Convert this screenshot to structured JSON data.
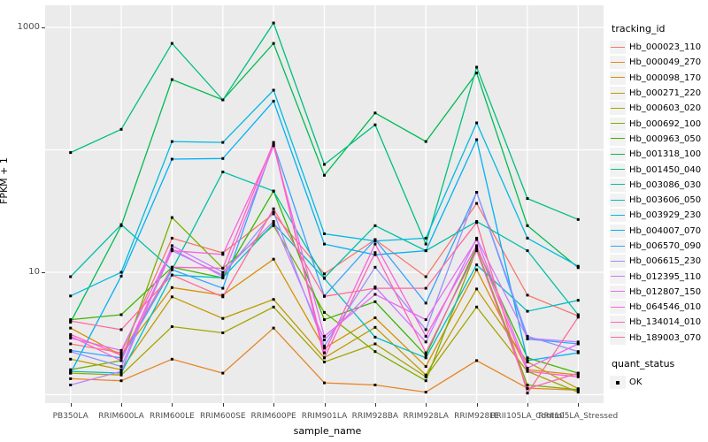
{
  "figure": {
    "panel_bg": "#ebebeb",
    "grid_color": "#ffffff",
    "point_color": "#000000",
    "tick_color": "#333333",
    "tick_label_color": "#4d4d4d"
  },
  "y_axis": {
    "title": "FPKM + 1",
    "ticks": [
      {
        "label": "1000",
        "value": 1000
      },
      {
        "label": "10",
        "value": 10
      }
    ],
    "gridline_values": [
      1,
      10,
      100,
      1000
    ]
  },
  "x_axis": {
    "title": "sample_name"
  },
  "legend": {
    "tracking_title": "tracking_id",
    "quant_title": "quant_status",
    "quant_ok_label": "OK"
  },
  "chart_data": {
    "type": "line",
    "title": "",
    "xlabel": "sample_name",
    "ylabel": "FPKM + 1",
    "y_scale": "log10",
    "ylim": [
      1,
      1200
    ],
    "legend_position": "right",
    "grid": true,
    "marker": "black-square",
    "categories": [
      "PB350LA",
      "RRIM600LA",
      "RRIM600LE",
      "RRIM600SE",
      "RRIM600PE",
      "RRIM901LA",
      "RRIM928BA",
      "RRIM928LA",
      "RRIM928LE",
      "RRII105LA_Control",
      "RRII105LA_Stressed"
    ],
    "series": [
      {
        "name": "Hb_000023_110",
        "color": "#F8766D",
        "values": [
          2.6,
          2.2,
          19,
          14.4,
          30,
          9.7,
          18.5,
          9.2,
          36.5,
          6.5,
          4.4
        ]
      },
      {
        "name": "Hb_000049_270",
        "color": "#E88526",
        "values": [
          1.35,
          1.3,
          1.95,
          1.5,
          3.5,
          1.25,
          1.2,
          1.05,
          1.9,
          1.13,
          1.09
        ]
      },
      {
        "name": "Hb_000098_170",
        "color": "#D89000",
        "values": [
          3.5,
          2.1,
          7.5,
          6.5,
          12.8,
          2.4,
          4.25,
          1.7,
          10.5,
          1.6,
          1.45
        ]
      },
      {
        "name": "Hb_000271_220",
        "color": "#C09B00",
        "values": [
          1.95,
          1.6,
          6.3,
          4.2,
          6.0,
          2.0,
          3.55,
          1.45,
          7.3,
          1.85,
          1.12
        ]
      },
      {
        "name": "Hb_000603_020",
        "color": "#A3A500",
        "values": [
          1.5,
          1.45,
          3.6,
          3.2,
          5.2,
          1.85,
          2.6,
          1.4,
          5.2,
          1.55,
          1.05
        ]
      },
      {
        "name": "Hb_000692_100",
        "color": "#7CAE00",
        "values": [
          1.6,
          1.9,
          28,
          10.8,
          24,
          4.7,
          2.25,
          1.3,
          15.5,
          1.2,
          1.1
        ]
      },
      {
        "name": "Hb_000963_050",
        "color": "#39B600",
        "values": [
          4.1,
          4.5,
          11,
          9.0,
          46,
          4.1,
          5.75,
          2.1,
          16,
          2.0,
          1.5
        ]
      },
      {
        "name": "Hb_001318_100",
        "color": "#00BB4E",
        "values": [
          3.9,
          24,
          375,
          256,
          740,
          62,
          200,
          117,
          425,
          24,
          10.9
        ]
      },
      {
        "name": "Hb_001450_040",
        "color": "#00BF7D",
        "values": [
          95,
          147,
          740,
          256,
          1086,
          76,
          160,
          17,
          473,
          40,
          27
        ]
      },
      {
        "name": "Hb_003086_030",
        "color": "#00C1A3",
        "values": [
          9.2,
          24.5,
          10.5,
          66,
          46,
          9.0,
          24,
          15,
          26,
          15,
          4.5
        ]
      },
      {
        "name": "Hb_003606_050",
        "color": "#00BFC4",
        "values": [
          1.55,
          1.5,
          9.5,
          9.0,
          25,
          8.9,
          2.95,
          2.0,
          11.5,
          4.8,
          5.9
        ]
      },
      {
        "name": "Hb_003929_230",
        "color": "#00BAE0",
        "values": [
          6.4,
          10,
          117,
          115,
          307,
          20.6,
          18,
          19,
          166,
          19,
          11.2
        ]
      },
      {
        "name": "Hb_004007_070",
        "color": "#00B0F6",
        "values": [
          1.5,
          9.3,
          84,
          85,
          250,
          17,
          13.9,
          15,
          121,
          1.9,
          2.2
        ]
      },
      {
        "name": "Hb_006570_090",
        "color": "#35A2FF",
        "values": [
          2.3,
          2.0,
          10.5,
          7.4,
          112,
          6.4,
          18.5,
          5.6,
          45,
          2.85,
          2.6
        ]
      },
      {
        "name": "Hb_006615_230",
        "color": "#9590FF",
        "values": [
          2.25,
          1.7,
          15,
          9.5,
          31,
          2.5,
          11,
          3.4,
          45,
          3.0,
          2.25
        ]
      },
      {
        "name": "Hb_012395_110",
        "color": "#C77CFF",
        "values": [
          1.2,
          1.55,
          16.5,
          10,
          26,
          2.8,
          7.6,
          2.7,
          19,
          2.9,
          2.7
        ]
      },
      {
        "name": "Hb_012807_150",
        "color": "#E76BF3",
        "values": [
          2.9,
          2.3,
          15.5,
          9.2,
          108,
          3.0,
          6.6,
          4.1,
          18.5,
          1.65,
          2.6
        ]
      },
      {
        "name": "Hb_064546_010",
        "color": "#FA62DB",
        "values": [
          3.0,
          1.9,
          15,
          14,
          110,
          2.2,
          17,
          3.0,
          16.5,
          1.55,
          1.4
        ]
      },
      {
        "name": "Hb_134014_010",
        "color": "#FF62BC",
        "values": [
          3.1,
          2.1,
          11,
          10.8,
          115,
          2.0,
          14.5,
          2.2,
          15,
          1.12,
          1.5
        ]
      },
      {
        "name": "Hb_189003_070",
        "color": "#FF6A98",
        "values": [
          4.0,
          3.4,
          9.5,
          6.3,
          33,
          6.35,
          7.4,
          7.4,
          25.5,
          1.03,
          4.3
        ]
      }
    ]
  }
}
